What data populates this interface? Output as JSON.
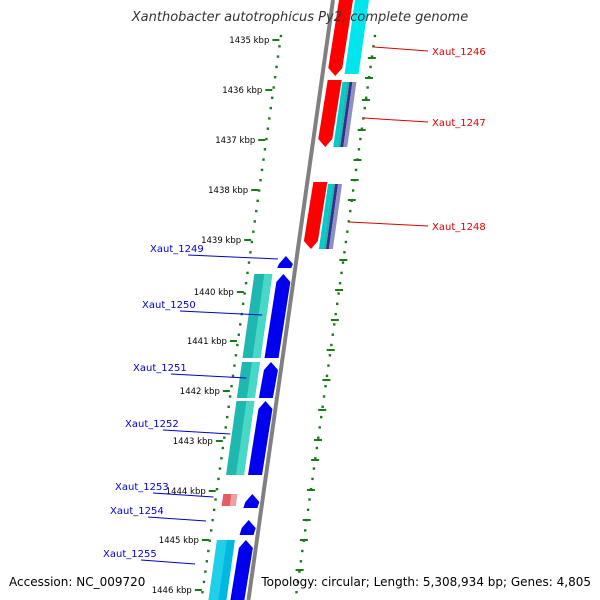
{
  "title": "Xanthobacter autotrophicus Py2, complete genome",
  "footer": {
    "accession": "Accession: NC_009720",
    "summary": "Topology: circular; Length: 5,308,934 bp; Genes: 4,805"
  },
  "colors": {
    "forward_gene": "#ff0000",
    "reverse_gene": "#0000ee",
    "forward_label": "#dd0000",
    "reverse_label": "#0000cc",
    "cds_cyan": "#00e5ee",
    "cds_teal": "#1fb8b0",
    "dots": "#1a7a1a",
    "backbone": "#808080"
  },
  "ticks": [
    {
      "label": "1435 kbp"
    },
    {
      "label": "1436 kbp"
    },
    {
      "label": "1437 kbp"
    },
    {
      "label": "1438 kbp"
    },
    {
      "label": "1439 kbp"
    },
    {
      "label": "1440 kbp"
    },
    {
      "label": "1441 kbp"
    },
    {
      "label": "1442 kbp"
    },
    {
      "label": "1443 kbp"
    },
    {
      "label": "1444 kbp"
    },
    {
      "label": "1445 kbp"
    },
    {
      "label": "1446 kbp"
    }
  ],
  "forward_genes": [
    {
      "label": "Xaut_1246"
    },
    {
      "label": "Xaut_1247"
    },
    {
      "label": "Xaut_1248"
    }
  ],
  "reverse_genes": [
    {
      "label": "Xaut_1249"
    },
    {
      "label": "Xaut_1250"
    },
    {
      "label": "Xaut_1251"
    },
    {
      "label": "Xaut_1252"
    },
    {
      "label": "Xaut_1253"
    },
    {
      "label": "Xaut_1254"
    },
    {
      "label": "Xaut_1255"
    }
  ]
}
